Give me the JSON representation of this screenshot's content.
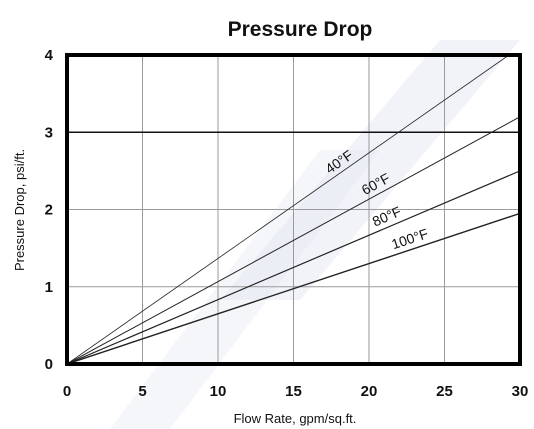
{
  "chart_data": {
    "type": "line",
    "title": "Pressure Drop",
    "xlabel": "Flow Rate, gpm/sq.ft.",
    "ylabel": "Pressure Drop, psi/ft.",
    "xlim": [
      0,
      30
    ],
    "ylim": [
      0,
      4
    ],
    "xticks": [
      0,
      5,
      10,
      15,
      20,
      25,
      30
    ],
    "yticks": [
      0,
      1,
      2,
      3,
      4
    ],
    "grid": true,
    "legend": "none",
    "series": [
      {
        "name": "40°F",
        "x": [
          0,
          30
        ],
        "y": [
          0,
          4.1
        ]
      },
      {
        "name": "60°F",
        "x": [
          0,
          30
        ],
        "y": [
          0,
          3.2
        ]
      },
      {
        "name": "80°F",
        "x": [
          0,
          30
        ],
        "y": [
          0,
          2.5
        ]
      },
      {
        "name": "100°F",
        "x": [
          0,
          30
        ],
        "y": [
          0,
          1.95
        ]
      }
    ],
    "reference_lines": [
      {
        "axis": "y",
        "value": 3
      }
    ]
  },
  "colors": {
    "line": "#222222",
    "grid": "#9a9a9a",
    "frame": "#000000",
    "watermark": "#dfe4ef"
  }
}
